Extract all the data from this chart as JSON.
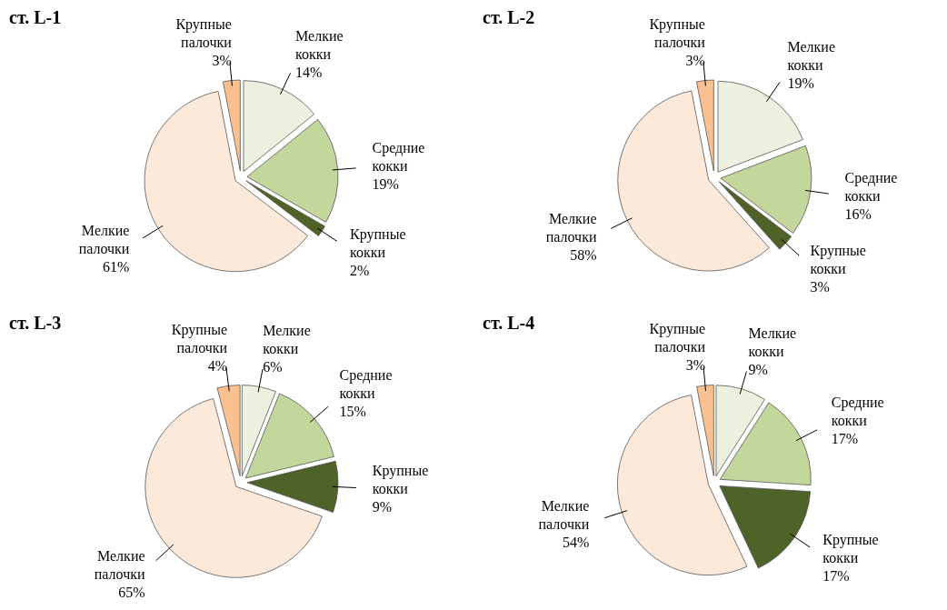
{
  "chart_data": [
    {
      "type": "pie",
      "title": "ст. L-1",
      "categories": [
        "Мелкие кокки",
        "Средние кокки",
        "Крупные кокки",
        "Мелкие палочки",
        "Крупные палочки"
      ],
      "values": [
        14,
        19,
        2,
        61,
        3
      ],
      "value_labels": [
        "14%",
        "19%",
        "2%",
        "61%",
        "3%"
      ],
      "colors": [
        "#ebf1de",
        "#c3d69b",
        "#4f6228",
        "#fde9d9",
        "#fac090"
      ]
    },
    {
      "type": "pie",
      "title": "ст. L-2",
      "categories": [
        "Мелкие кокки",
        "Средние кокки",
        "Крупные кокки",
        "Мелкие палочки",
        "Крупные палочки"
      ],
      "values": [
        19,
        16,
        3,
        58,
        3
      ],
      "value_labels": [
        "19%",
        "16%",
        "3%",
        "58%",
        "3%"
      ],
      "colors": [
        "#ebf1de",
        "#c3d69b",
        "#4f6228",
        "#fde9d9",
        "#fac090"
      ]
    },
    {
      "type": "pie",
      "title": "ст. L-3",
      "categories": [
        "Мелкие кокки",
        "Средние кокки",
        "Крупные кокки",
        "Мелкие палочки",
        "Крупные палочки"
      ],
      "values": [
        6,
        15,
        9,
        65,
        4
      ],
      "value_labels": [
        "6%",
        "15%",
        "9%",
        "65%",
        "4%"
      ],
      "colors": [
        "#ebf1de",
        "#c3d69b",
        "#4f6228",
        "#fde9d9",
        "#fac090"
      ]
    },
    {
      "type": "pie",
      "title": "ст. L-4",
      "categories": [
        "Мелкие кокки",
        "Средние кокки",
        "Крупные кокки",
        "Мелкие палочки",
        "Крупные палочки"
      ],
      "values": [
        9,
        17,
        17,
        54,
        3
      ],
      "value_labels": [
        "9%",
        "17%",
        "17%",
        "54%",
        "3%"
      ],
      "colors": [
        "#ebf1de",
        "#c3d69b",
        "#4f6228",
        "#fde9d9",
        "#fac090"
      ]
    }
  ]
}
